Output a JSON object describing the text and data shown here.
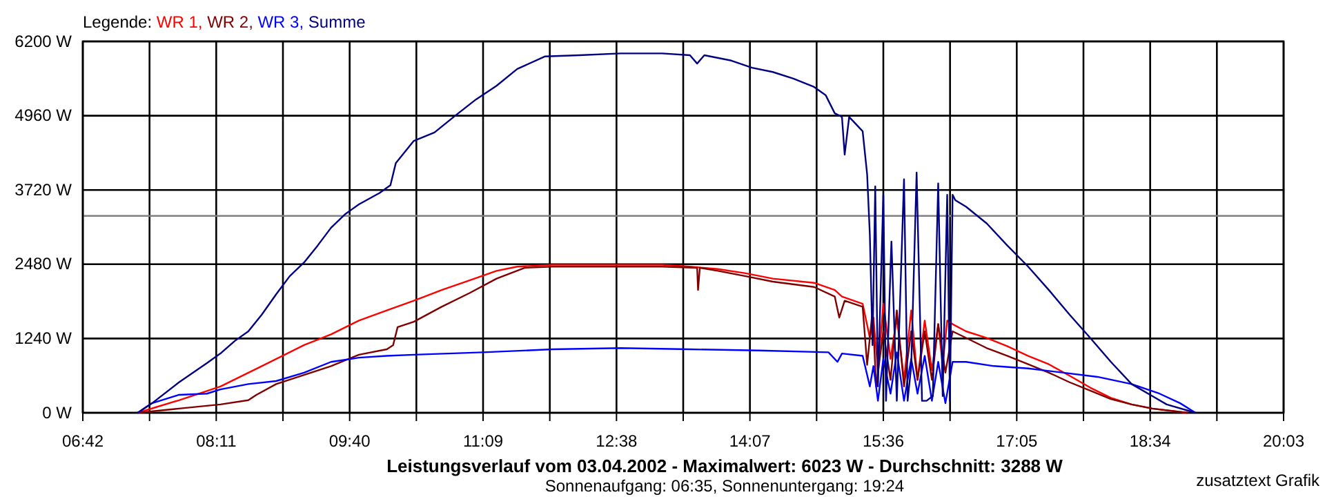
{
  "chart_data": {
    "type": "line",
    "title": "Leistungsverlauf vom 03.04.2002 - Maximalwert: 6023 W - Durchschnitt: 3288 W",
    "subtitle": "Sonnenaufgang: 06:35, Sonnenuntergang: 19:24",
    "legend_title": "Legende:",
    "legend": "top left",
    "grid": true,
    "line_style": "solid",
    "annotations": [
      "zusatztext Grafik"
    ],
    "xlim": [
      6.7,
      20.05
    ],
    "ylim": [
      0,
      6200
    ],
    "xticks": [
      {
        "value": 6.7,
        "label": "06:42"
      },
      {
        "value": 7.4417,
        "label": null
      },
      {
        "value": 8.1833,
        "label": "08:11"
      },
      {
        "value": 8.925,
        "label": null
      },
      {
        "value": 9.6667,
        "label": "09:40"
      },
      {
        "value": 10.4083,
        "label": null
      },
      {
        "value": 11.15,
        "label": "11:09"
      },
      {
        "value": 11.8917,
        "label": null
      },
      {
        "value": 12.6333,
        "label": "12:38"
      },
      {
        "value": 13.375,
        "label": null
      },
      {
        "value": 14.1167,
        "label": "14:07"
      },
      {
        "value": 14.8583,
        "label": null
      },
      {
        "value": 15.6,
        "label": "15:36"
      },
      {
        "value": 16.3417,
        "label": null
      },
      {
        "value": 17.0833,
        "label": "17:05"
      },
      {
        "value": 17.825,
        "label": null
      },
      {
        "value": 18.5667,
        "label": "18:34"
      },
      {
        "value": 19.3083,
        "label": null
      },
      {
        "value": 20.05,
        "label": "20:03"
      }
    ],
    "yticks": [
      {
        "value": 0,
        "label": "0 W"
      },
      {
        "value": 1240,
        "label": "1240 W"
      },
      {
        "value": 2480,
        "label": "2480 W"
      },
      {
        "value": 3720,
        "label": "3720 W"
      },
      {
        "value": 4960,
        "label": "4960 W"
      },
      {
        "value": 6200,
        "label": "6200 W"
      }
    ],
    "ref_lines": [
      {
        "axis": "y",
        "value": 3288,
        "color": "#808080"
      }
    ],
    "series": [
      {
        "name": "WR 1,",
        "color": "#ff0000",
        "x": [
          7.31,
          7.77,
          8.23,
          8.69,
          9.16,
          9.46,
          9.77,
          10.08,
          10.38,
          10.69,
          11.0,
          11.3,
          11.53,
          11.92,
          13.14,
          13.45,
          13.76,
          14.07,
          14.37,
          14.83,
          15.06,
          15.14,
          15.37,
          15.45,
          15.49,
          15.54,
          15.6,
          15.68,
          15.75,
          15.83,
          15.91,
          15.98,
          16.06,
          16.14,
          16.21,
          16.26,
          16.31,
          16.37,
          16.52,
          16.75,
          16.98,
          17.21,
          17.44,
          17.67,
          17.9,
          18.13,
          18.36,
          18.59,
          18.98
        ],
        "values": [
          0,
          210,
          440,
          780,
          1130,
          1310,
          1540,
          1710,
          1870,
          2050,
          2210,
          2370,
          2440,
          2470,
          2470,
          2440,
          2400,
          2330,
          2240,
          2170,
          2050,
          1940,
          1820,
          1250,
          1590,
          710,
          1820,
          900,
          1590,
          550,
          1710,
          550,
          1540,
          710,
          1480,
          800,
          1540,
          1480,
          1360,
          1250,
          1110,
          950,
          810,
          620,
          420,
          250,
          140,
          70,
          0
        ]
      },
      {
        "name": "WR 2,",
        "color": "#800000",
        "x": [
          7.31,
          7.77,
          8.23,
          8.54,
          8.63,
          8.85,
          9.46,
          9.77,
          10.08,
          10.15,
          10.2,
          10.38,
          10.69,
          11.0,
          11.3,
          11.61,
          11.92,
          13.14,
          13.53,
          13.54,
          13.56,
          13.76,
          14.07,
          14.37,
          14.83,
          15.06,
          15.11,
          15.17,
          15.37,
          15.42,
          15.48,
          15.52,
          15.6,
          15.68,
          15.75,
          15.83,
          15.91,
          15.98,
          16.06,
          16.14,
          16.21,
          16.29,
          16.37,
          16.52,
          16.75,
          16.98,
          17.21,
          17.44,
          17.67,
          17.9,
          18.13,
          18.36,
          18.59,
          18.98
        ],
        "values": [
          0,
          70,
          140,
          210,
          300,
          480,
          780,
          970,
          1060,
          1130,
          1430,
          1520,
          1770,
          2000,
          2240,
          2420,
          2440,
          2440,
          2420,
          2050,
          2420,
          2370,
          2280,
          2190,
          2100,
          1940,
          1590,
          1870,
          1770,
          800,
          1710,
          440,
          1360,
          550,
          1710,
          440,
          1360,
          550,
          1360,
          550,
          1480,
          670,
          1360,
          1250,
          1080,
          950,
          810,
          670,
          510,
          370,
          230,
          140,
          70,
          0
        ]
      },
      {
        "name": "WR 3,",
        "color": "#0000ff",
        "x": [
          7.31,
          7.47,
          7.77,
          8.08,
          8.23,
          8.54,
          8.85,
          9.16,
          9.46,
          9.77,
          10.08,
          10.38,
          11.15,
          11.92,
          12.68,
          13.45,
          14.22,
          14.99,
          15.09,
          15.14,
          15.37,
          15.45,
          15.49,
          15.54,
          15.6,
          15.68,
          15.75,
          15.83,
          15.91,
          15.98,
          16.06,
          16.14,
          16.21,
          16.29,
          16.37,
          16.52,
          16.83,
          17.21,
          17.6,
          17.98,
          18.36,
          18.67,
          18.9,
          19.07
        ],
        "values": [
          0,
          160,
          300,
          320,
          390,
          480,
          530,
          670,
          850,
          920,
          950,
          970,
          1010,
          1060,
          1080,
          1060,
          1040,
          1010,
          850,
          990,
          950,
          440,
          780,
          200,
          900,
          320,
          1010,
          200,
          900,
          320,
          950,
          200,
          850,
          160,
          850,
          850,
          780,
          740,
          670,
          600,
          480,
          320,
          160,
          0
        ]
      },
      {
        "name": "Summe",
        "color": "#000080",
        "x": [
          7.31,
          7.47,
          7.77,
          8.08,
          8.23,
          8.39,
          8.54,
          8.69,
          8.85,
          9.0,
          9.16,
          9.31,
          9.46,
          9.62,
          9.77,
          10.0,
          10.12,
          10.18,
          10.38,
          10.61,
          10.84,
          11.07,
          11.3,
          11.53,
          11.84,
          12.22,
          12.68,
          13.14,
          13.45,
          13.53,
          13.61,
          13.91,
          14.14,
          14.37,
          14.6,
          14.83,
          14.96,
          15.06,
          15.14,
          15.17,
          15.22,
          15.37,
          15.42,
          15.45,
          15.48,
          15.51,
          15.54,
          15.6,
          15.63,
          15.69,
          15.75,
          15.83,
          15.87,
          15.91,
          15.97,
          16.03,
          16.08,
          16.15,
          16.21,
          16.26,
          16.31,
          16.34,
          16.37,
          16.4,
          16.52,
          16.75,
          16.98,
          17.21,
          17.44,
          17.67,
          17.9,
          18.13,
          18.36,
          18.59,
          18.75,
          19.07
        ],
        "values": [
          0,
          160,
          510,
          830,
          990,
          1200,
          1360,
          1640,
          1980,
          2280,
          2510,
          2790,
          3090,
          3320,
          3480,
          3670,
          3800,
          4170,
          4540,
          4680,
          4960,
          5230,
          5460,
          5740,
          5950,
          5970,
          6000,
          6000,
          5970,
          5830,
          5970,
          5880,
          5760,
          5690,
          5580,
          5440,
          5300,
          5000,
          4940,
          4310,
          4940,
          4700,
          3980,
          2970,
          1130,
          3780,
          440,
          3640,
          200,
          2860,
          200,
          3900,
          200,
          780,
          4010,
          200,
          200,
          280,
          3830,
          280,
          3640,
          200,
          3640,
          3550,
          3440,
          3160,
          2790,
          2440,
          2050,
          1640,
          1250,
          850,
          480,
          280,
          140,
          0
        ]
      }
    ]
  }
}
